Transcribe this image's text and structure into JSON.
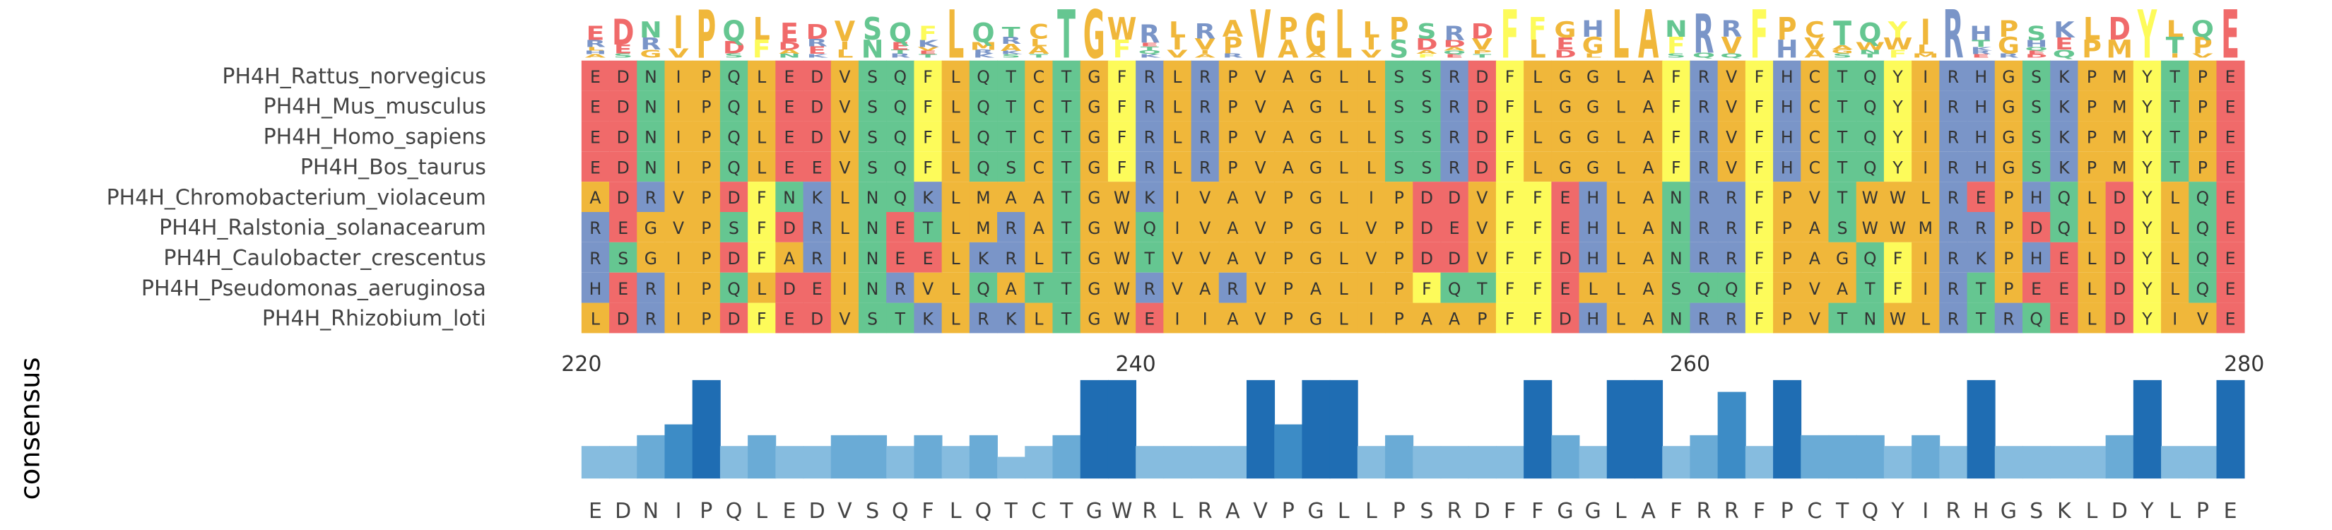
{
  "chart_data": {
    "type": "heatmap",
    "title": "",
    "subplot_label": "consensus",
    "position_start": 220,
    "position_end": 280,
    "position_ticks": [
      220,
      240,
      260,
      280
    ],
    "sequences": [
      {
        "name": "PH4H_Rattus_norvegicus",
        "residues": "EDNIPQLEDVSQFLQTCTGFRLRPVAGLLSSRDFLGGLAFRVFHCTQYIRHGSKPMYTPE"
      },
      {
        "name": "PH4H_Mus_musculus",
        "residues": "EDNIPQLEDVSQFLQTCTGFRLRPVAGLLSSRDFLGGLAFRVFHCTQYIRHGSKPMYTPE"
      },
      {
        "name": "PH4H_Homo_sapiens",
        "residues": "EDNIPQLEDVSQFLQTCTGFRLRPVAGLLSSRDFLGGLAFRVFHCTQYIRHGSKPMYTPE"
      },
      {
        "name": "PH4H_Bos_taurus",
        "residues": "EDNIPQLEEVSQFLQSCTGFRLRPVAGLLSSRDFLGGLAFRVFHCTQYIRHGSKPMYTPE"
      },
      {
        "name": "PH4H_Chromobacterium_violaceum",
        "residues": "ADRVPDFNKLNQKLMAATGWKIVAVPGLIPDDVFFEHLANRRFPVTWWLREPHQLDYLQE"
      },
      {
        "name": "PH4H_Ralstonia_solanacearum",
        "residues": "REGVPSFDRLNETLMRATGWQIVAVPGLVPDEVFFEHLANRRFPASWWMRRPDQLDYLQE"
      },
      {
        "name": "PH4H_Caulobacter_crescentus",
        "residues": "RSGIPDFARINEELKRLTGWTVVAVPGLVPDDVFFDHLANRRFPAGQFIRKPHELDYLQE"
      },
      {
        "name": "PH4H_Pseudomonas_aeruginosa",
        "residues": "HERIPQLDEINRVLQATTGWRVARVPALIPFQTFFELLASQQFPVATFIRTPEELDYLQE"
      },
      {
        "name": "PH4H_Rhizobium_loti",
        "residues": "LDRIPDFEDVSTKLRKLTGWEIIAVPGLIPAAPFFDHLANRRFPVTNWLRTRQELDYIVE"
      }
    ],
    "consensus": "EDNIPQLEDVSQFLQTCTGWRLRAVPGLLPSRDFFGGLAFRRFPCTQYIRHGSKLDYLPE",
    "conservation": [
      0.33,
      0.33,
      0.44,
      0.55,
      1.0,
      0.33,
      0.44,
      0.33,
      0.33,
      0.44,
      0.44,
      0.33,
      0.44,
      0.33,
      0.44,
      0.22,
      0.33,
      0.44,
      1.0,
      1.0,
      0.33,
      0.33,
      0.33,
      0.33,
      1.0,
      0.55,
      1.0,
      1.0,
      0.33,
      0.44,
      0.33,
      0.33,
      0.33,
      0.33,
      1.0,
      0.44,
      0.33,
      1.0,
      1.0,
      0.33,
      0.44,
      0.88,
      0.33,
      1.0,
      0.44,
      0.44,
      0.44,
      0.33,
      0.44,
      0.33,
      1.0,
      0.33,
      0.33,
      0.33,
      0.33,
      0.44,
      1.0,
      0.33,
      0.33,
      1.0
    ],
    "conservation_colors": [
      "#b3d3ea",
      "#6aabd6",
      "#2f7fc1",
      "#1f6db3"
    ],
    "residue_colors": {
      "hydrophobic": {
        "residues": "AILMVC",
        "color": "#f0b73a"
      },
      "aromatic": {
        "residues": "FY",
        "color": "#fdfb5a"
      },
      "tryptophan": {
        "residues": "W",
        "color": "#f0b73a"
      },
      "glycine": {
        "residues": "G",
        "color": "#f0b73a"
      },
      "proline": {
        "residues": "P",
        "color": "#f0b73a"
      },
      "positive": {
        "residues": "KRH",
        "color": "#7a95c8"
      },
      "negative": {
        "residues": "DE",
        "color": "#f06a6a"
      },
      "polar": {
        "residues": "STNQ",
        "color": "#65c691"
      }
    }
  }
}
